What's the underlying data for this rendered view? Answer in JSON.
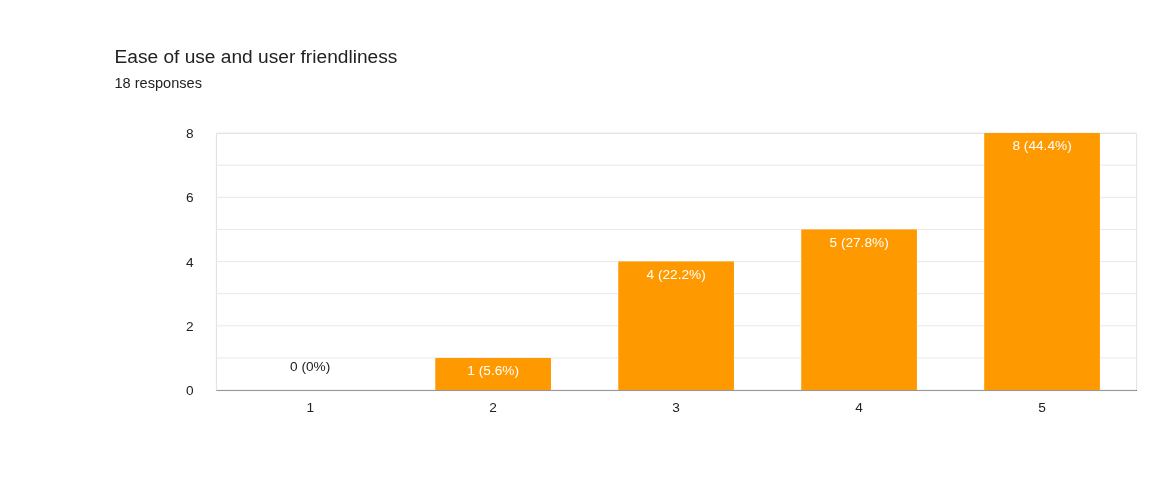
{
  "chart_data": {
    "type": "bar",
    "title": "Ease of use and user friendliness",
    "subtitle": "18 responses",
    "categories": [
      "1",
      "2",
      "3",
      "4",
      "5"
    ],
    "values": [
      0,
      1,
      4,
      5,
      8
    ],
    "color": "#ff9900",
    "value_labels": [
      "0 (0%)",
      "1 (5.6%)",
      "4 (22.2%)",
      "5 (27.8%)",
      "8 (44.4%)"
    ],
    "ylim": [
      0,
      8
    ],
    "yticks": [
      0,
      {
        "value": 1,
        "label": null
      },
      2,
      {
        "value": 3,
        "label": null
      },
      4,
      {
        "value": 5,
        "label": null
      },
      6,
      {
        "value": 7,
        "label": null
      },
      8
    ],
    "grid": "y"
  }
}
